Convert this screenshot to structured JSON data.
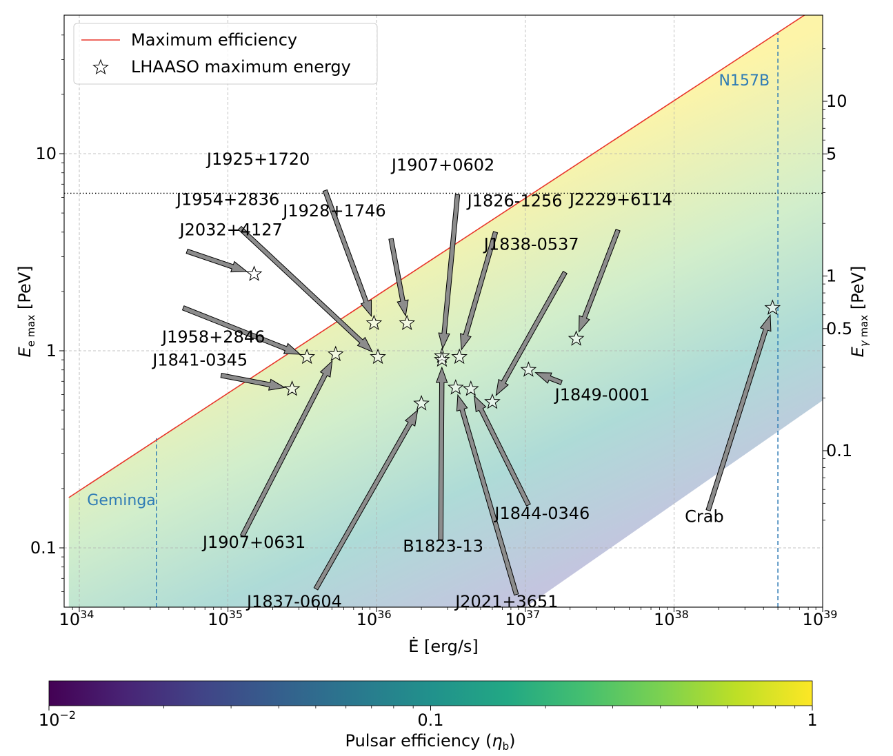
{
  "chart_data": {
    "type": "scatter",
    "xlabel": "Ė [erg/s]",
    "ylabel_left": "E_e max [PeV]",
    "ylabel_right": "E_γ max [PeV]",
    "x_scale": "log",
    "y_scale": "log",
    "xlim": [
      8.5e+33,
      1e+39
    ],
    "ylim": [
      0.05,
      47
    ],
    "grid": true,
    "legend_position": "top-left",
    "x_ticks": [
      {
        "value": 1e+34,
        "base": "10",
        "exp": "34"
      },
      {
        "value": 1e+35,
        "base": "10",
        "exp": "35"
      },
      {
        "value": 1e+36,
        "base": "10",
        "exp": "36"
      },
      {
        "value": 1e+37,
        "base": "10",
        "exp": "37"
      },
      {
        "value": 1e+38,
        "base": "10",
        "exp": "38"
      },
      {
        "value": 1e+39,
        "base": "10",
        "exp": "39"
      }
    ],
    "y_ticks_left": [
      {
        "value": 0.1,
        "label": "0.1"
      },
      {
        "value": 1,
        "label": "1"
      },
      {
        "value": 10,
        "label": "10"
      }
    ],
    "y_ticks_right": [
      {
        "value": 0.1,
        "label": "0.1"
      },
      {
        "value": 0.5,
        "label": "0.5"
      },
      {
        "value": 1,
        "label": "1"
      },
      {
        "value": 5,
        "label": "5"
      },
      {
        "value": 10,
        "label": "10"
      }
    ],
    "max_efficiency_line": {
      "name": "Maximum efficiency",
      "color": "#e8352a",
      "points": [
        [
          8.5e+33,
          0.18
        ],
        [
          1e+39,
          58
        ]
      ]
    },
    "efficiency_band_lower": [
      [
        1e+37,
        0.05
      ],
      [
        1e+39,
        0.56
      ]
    ],
    "horizontal_dotted_line": {
      "y": 6.3
    },
    "vertical_lines": [
      {
        "label": "Geminga",
        "x": 3.3e+34,
        "ymax": 0.36,
        "color": "#2e7bb5"
      },
      {
        "label": "N157B",
        "x": 5e+38,
        "ymax": 41,
        "color": "#2e7bb5"
      }
    ],
    "series": [
      {
        "name": "LHAASO maximum energy",
        "points": [
          {
            "label": "J2032+4127",
            "x": 1.5e+35,
            "y": 2.45,
            "label_pos": [
              1.05e+35,
              3.85
            ],
            "arrow_start": [
              5.3e+34,
              3.2
            ]
          },
          {
            "label": "J1958+2846",
            "x": 3.4e+35,
            "y": 0.93,
            "label_pos": [
              8e+34,
              1.1
            ],
            "arrow_start": [
              5e+34,
              1.65
            ]
          },
          {
            "label": "J1841-0345",
            "x": 2.7e+35,
            "y": 0.64,
            "label_pos": [
              6.5e+34,
              0.84
            ],
            "arrow_start": [
              9e+34,
              0.75
            ]
          },
          {
            "label": "J1907+0631",
            "x": 5.3e+35,
            "y": 0.96,
            "label_pos": [
              1.5e+35,
              0.1
            ],
            "arrow_start": [
              1.25e+35,
              0.115
            ]
          },
          {
            "label": "J1954+2836",
            "x": 1.02e+36,
            "y": 0.93,
            "label_pos": [
              1e+35,
              5.5
            ],
            "arrow_start": [
              1.2e+35,
              4.2
            ]
          },
          {
            "label": "J1925+1720",
            "x": 9.6e+35,
            "y": 1.38,
            "label_pos": [
              1.6e+35,
              8.8
            ],
            "arrow_start": [
              4.5e+35,
              6.5
            ]
          },
          {
            "label": "J1928+1746",
            "x": 1.6e+36,
            "y": 1.38,
            "label_pos": [
              5.2e+35,
              4.8
            ],
            "arrow_start": [
              1.25e+36,
              3.7
            ]
          },
          {
            "label": "J1837-0604",
            "x": 2e+36,
            "y": 0.54,
            "label_pos": [
              2.8e+35,
              0.05
            ],
            "arrow_start": [
              3.9e+35,
              0.062
            ]
          },
          {
            "label": "J1907+0602",
            "x": 2.75e+36,
            "y": 0.94,
            "label_pos": [
              2.8e+36,
              8.2
            ],
            "arrow_start": [
              3.5e+36,
              6.2
            ]
          },
          {
            "label": "B1823-13",
            "x": 2.75e+36,
            "y": 0.9,
            "label_pos": [
              2.8e+36,
              0.0955
            ],
            "arrow_start": [
              2.7e+36,
              0.11
            ]
          },
          {
            "label": "J1826-1256",
            "x": 3.6e+36,
            "y": 0.93,
            "label_pos": [
              8.5e+36,
              5.4
            ],
            "arrow_start": [
              6.3e+36,
              4.0
            ]
          },
          {
            "label": "J2021+3651",
            "x": 3.4e+36,
            "y": 0.65,
            "label_pos": [
              7.5e+36,
              0.05
            ],
            "arrow_start": [
              8.7e+36,
              0.058
            ]
          },
          {
            "label": "J1844-0346",
            "x": 4.3e+36,
            "y": 0.64,
            "label_pos": [
              1.3e+37,
              0.14
            ],
            "arrow_start": [
              1.05e+37,
              0.165
            ]
          },
          {
            "label": "J1838-0537",
            "x": 6e+36,
            "y": 0.55,
            "label_pos": [
              1.1e+37,
              3.25
            ],
            "arrow_start": [
              1.85e+37,
              2.5
            ]
          },
          {
            "label": "J1849-0001",
            "x": 1.05e+37,
            "y": 0.8,
            "label_pos": [
              3.3e+37,
              0.56
            ],
            "arrow_start": [
              1.75e+37,
              0.69
            ]
          },
          {
            "label": "J2229+6114",
            "x": 2.2e+37,
            "y": 1.15,
            "label_pos": [
              4.4e+37,
              5.5
            ],
            "arrow_start": [
              4.2e+37,
              4.1
            ]
          },
          {
            "label": "Crab",
            "x": 4.6e+38,
            "y": 1.65,
            "label_pos": [
              1.6e+38,
              0.135
            ],
            "arrow_start": [
              1.7e+38,
              0.155
            ]
          }
        ]
      }
    ],
    "colorbar": {
      "label": "Pulsar efficiency (η_b)",
      "ticks": [
        {
          "value": 0.01,
          "label": "10",
          "exp": "−2"
        },
        {
          "value": 0.1,
          "label": "0.1",
          "exp": ""
        },
        {
          "value": 1,
          "label": "1",
          "exp": ""
        }
      ],
      "colormap": "viridis"
    }
  }
}
